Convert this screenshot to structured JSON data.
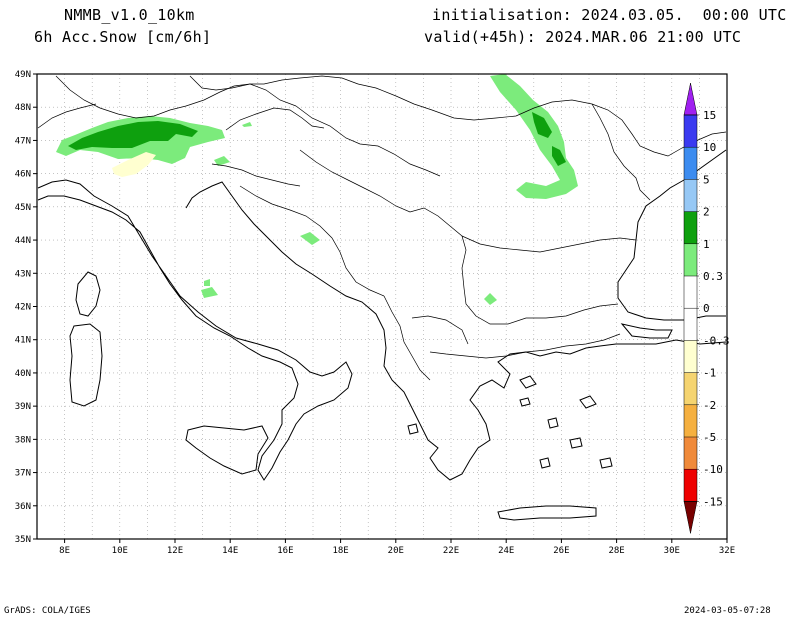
{
  "header": {
    "model": "NMMB_v1.0_10km",
    "field": "6h Acc.Snow [cm/6h]",
    "init": "initialisation: 2024.03.05.  00:00 UTC",
    "valid": "valid(+45h): 2024.MAR.06 21:00 UTC"
  },
  "footer": {
    "left": "GrADS: COLA/IGES",
    "right": "2024-03-05-07:28"
  },
  "map": {
    "lon_range": [
      7,
      32
    ],
    "lat_range": [
      35,
      49
    ],
    "lon_ticks": [
      "8E",
      "10E",
      "12E",
      "14E",
      "16E",
      "18E",
      "20E",
      "22E",
      "24E",
      "26E",
      "28E",
      "30E",
      "32E"
    ],
    "lat_ticks": [
      "49N",
      "48N",
      "47N",
      "46N",
      "45N",
      "44N",
      "43N",
      "42N",
      "41N",
      "40N",
      "39N",
      "38N",
      "37N",
      "36N",
      "35N"
    ],
    "grid": true
  },
  "legend": {
    "levels": [
      {
        "label": "15",
        "color": "#a020f0"
      },
      {
        "label": "10",
        "color": "#3a3af0"
      },
      {
        "label": "5",
        "color": "#3c8cf0"
      },
      {
        "label": "2",
        "color": "#96c8f5"
      },
      {
        "label": "1",
        "color": "#0ea00e"
      },
      {
        "label": "0.3",
        "color": "#7ceb7c"
      },
      {
        "label": "0",
        "color": "#ffffff"
      },
      {
        "label": "-0.3",
        "color": "#ffffd0"
      },
      {
        "label": "-1",
        "color": "#f5d470"
      },
      {
        "label": "-2",
        "color": "#f5b040"
      },
      {
        "label": "-5",
        "color": "#f08a3a"
      },
      {
        "label": "-10",
        "color": "#ee0000"
      },
      {
        "label": "-15",
        "color": "#b40000"
      }
    ],
    "cap_top_color": "#a020f0",
    "cap_bottom_color": "#780000"
  },
  "colors": {
    "light_green": "#7ceb7c",
    "dark_green": "#0ea00e",
    "pale_yellow": "#ffffd0",
    "coast": "#000000",
    "gridline": "#a0a0a0"
  }
}
